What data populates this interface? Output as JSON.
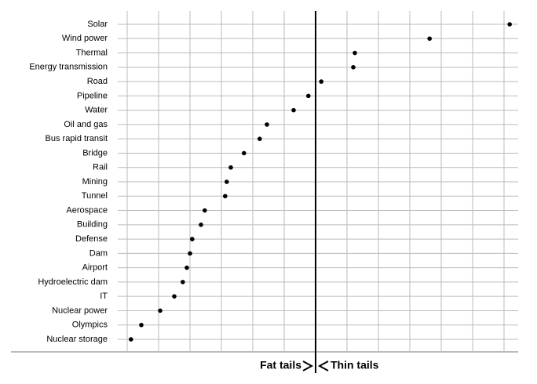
{
  "chart_data": {
    "type": "dot",
    "categories": [
      "Solar",
      "Wind power",
      "Thermal",
      "Energy transmission",
      "Road",
      "Pipeline",
      "Water",
      "Oil and gas",
      "Bus rapid transit",
      "Bridge",
      "Rail",
      "Mining",
      "Tunnel",
      "Aerospace",
      "Building",
      "Defense",
      "Dam",
      "Airport",
      "Hydroelectric dam",
      "IT",
      "Nuclear power",
      "Olympics",
      "Nuclear storage"
    ],
    "values": [
      6.18,
      3.63,
      1.25,
      1.2,
      0.18,
      -0.23,
      -0.7,
      -1.55,
      -1.78,
      -2.28,
      -2.7,
      -2.83,
      -2.88,
      -3.53,
      -3.65,
      -3.93,
      -4.0,
      -4.1,
      -4.23,
      -4.5,
      -4.95,
      -5.55,
      -5.88
    ],
    "color": "#000000",
    "xlim": [
      -6.3,
      6.45
    ],
    "xticks": [
      -6,
      -5,
      -4,
      -3,
      -2,
      -1,
      0,
      1,
      2,
      3,
      4,
      5,
      6
    ],
    "grid": true,
    "reference_x": 0,
    "annotations": {
      "left": "Fat tails",
      "right": "Thin tails"
    }
  }
}
